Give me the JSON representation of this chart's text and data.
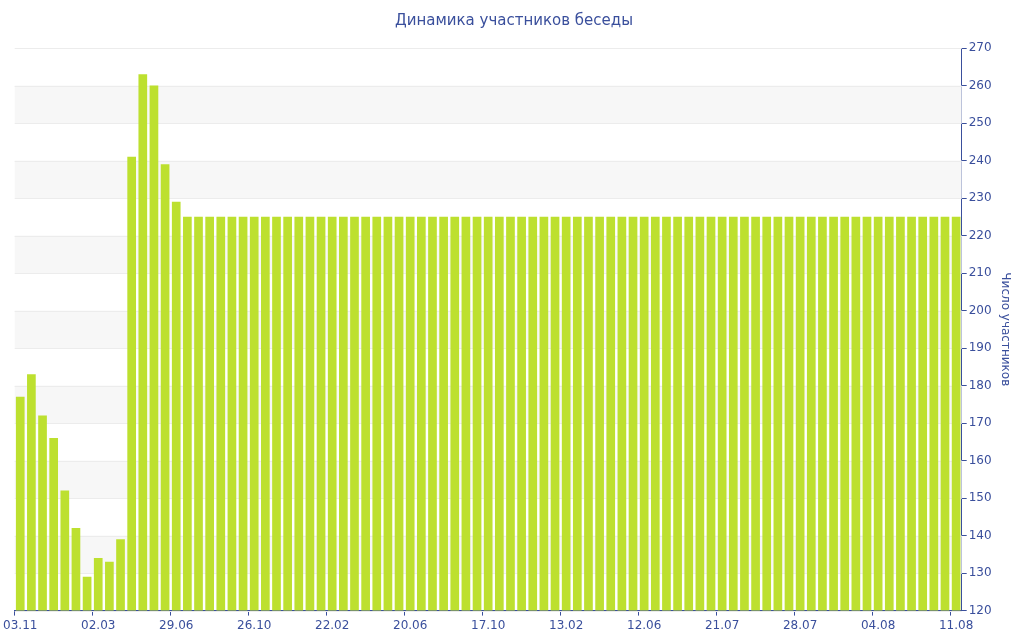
{
  "chart_data": {
    "type": "bar",
    "title": "Динамика участников беседы",
    "y2label": "Число участников",
    "categories": [
      "03.11",
      null,
      null,
      null,
      null,
      null,
      null,
      "02.03",
      null,
      null,
      null,
      null,
      null,
      null,
      "29.06",
      null,
      null,
      null,
      null,
      null,
      null,
      "26.10",
      null,
      null,
      null,
      null,
      null,
      null,
      "22.02",
      null,
      null,
      null,
      null,
      null,
      null,
      "20.06",
      null,
      null,
      null,
      null,
      null,
      null,
      "17.10",
      null,
      null,
      null,
      null,
      null,
      null,
      "13.02",
      null,
      null,
      null,
      null,
      null,
      null,
      "12.06",
      null,
      null,
      null,
      null,
      null,
      null,
      "21.07",
      null,
      null,
      null,
      null,
      null,
      null,
      "28.07",
      null,
      null,
      null,
      null,
      null,
      null,
      "04.08",
      null,
      null,
      null,
      null,
      null,
      null,
      "11.08"
    ],
    "series": [
      {
        "color": "#bde02f",
        "axis": "y2",
        "values": [
          177,
          183,
          172,
          166,
          152,
          142,
          129,
          134,
          133,
          139,
          241,
          263,
          260,
          239,
          229,
          225,
          225,
          225,
          225,
          225,
          225,
          225,
          225,
          225,
          225,
          225,
          225,
          225,
          225,
          225,
          225,
          225,
          225,
          225,
          225,
          225,
          225,
          225,
          225,
          225,
          225,
          225,
          225,
          225,
          225,
          225,
          225,
          225,
          225,
          225,
          225,
          225,
          225,
          225,
          225,
          225,
          225,
          225,
          225,
          225,
          225,
          225,
          225,
          225,
          225,
          225,
          225,
          225,
          225,
          225,
          225,
          225,
          225,
          225,
          225,
          225,
          225,
          225,
          225,
          225,
          225,
          225,
          225,
          225,
          225
        ]
      }
    ],
    "y2lim": [
      120,
      270
    ],
    "y2ticks": [
      120,
      130,
      140,
      150,
      160,
      170,
      180,
      190,
      200,
      210,
      220,
      230,
      240,
      250,
      260,
      270
    ],
    "grid": "y",
    "legend": false
  }
}
